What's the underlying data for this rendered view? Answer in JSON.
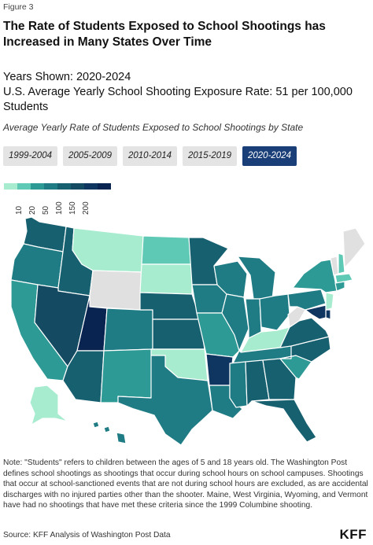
{
  "figure_label": "Figure 3",
  "title": "The Rate of Students Exposed to School Shootings has Increased in Many States Over Time",
  "years_shown": "Years Shown: 2020-2024",
  "us_average": "U.S. Average Yearly School Shooting Exposure Rate: 51 per 100,000 Students",
  "subtitle": "Average Yearly Rate of Students Exposed to School Shootings by State",
  "period_buttons": [
    {
      "label": "1999-2004",
      "active": false
    },
    {
      "label": "2005-2009",
      "active": false
    },
    {
      "label": "2010-2014",
      "active": false
    },
    {
      "label": "2015-2019",
      "active": false
    },
    {
      "label": "2020-2024",
      "active": true
    }
  ],
  "legend": {
    "ticks": [
      "10",
      "20",
      "50",
      "100",
      "150",
      "200"
    ],
    "colors": [
      "#a8ecd0",
      "#5ec9b4",
      "#2e9a96",
      "#1f7c84",
      "#17606f",
      "#144b63",
      "#0e3660",
      "#0a2452"
    ]
  },
  "map_colors": {
    "no_data": "#e0e0e0",
    "tier1": "#a8ecd0",
    "tier2": "#5ec9b4",
    "tier3": "#2e9a96",
    "tier4": "#1f7c84",
    "tier5": "#17606f",
    "tier6": "#144b63",
    "tier7": "#0e3660",
    "tier8": "#0a2452"
  },
  "states": [
    {
      "id": "WA",
      "tier": "tier5"
    },
    {
      "id": "OR",
      "tier": "tier4"
    },
    {
      "id": "CA",
      "tier": "tier3"
    },
    {
      "id": "ID",
      "tier": "tier5"
    },
    {
      "id": "NV",
      "tier": "tier6"
    },
    {
      "id": "MT",
      "tier": "tier1"
    },
    {
      "id": "WY",
      "tier": "no_data"
    },
    {
      "id": "UT",
      "tier": "tier8"
    },
    {
      "id": "AZ",
      "tier": "tier5"
    },
    {
      "id": "CO",
      "tier": "tier4"
    },
    {
      "id": "NM",
      "tier": "tier3"
    },
    {
      "id": "ND",
      "tier": "tier2"
    },
    {
      "id": "SD",
      "tier": "tier1"
    },
    {
      "id": "NE",
      "tier": "tier5"
    },
    {
      "id": "KS",
      "tier": "tier5"
    },
    {
      "id": "OK",
      "tier": "tier1"
    },
    {
      "id": "TX",
      "tier": "tier4"
    },
    {
      "id": "MN",
      "tier": "tier5"
    },
    {
      "id": "IA",
      "tier": "tier4"
    },
    {
      "id": "MO",
      "tier": "tier3"
    },
    {
      "id": "AR",
      "tier": "tier7"
    },
    {
      "id": "LA",
      "tier": "tier4"
    },
    {
      "id": "WI",
      "tier": "tier4"
    },
    {
      "id": "IL",
      "tier": "tier4"
    },
    {
      "id": "MI",
      "tier": "tier4"
    },
    {
      "id": "IN",
      "tier": "tier4"
    },
    {
      "id": "OH",
      "tier": "tier4"
    },
    {
      "id": "KY",
      "tier": "tier1"
    },
    {
      "id": "TN",
      "tier": "tier4"
    },
    {
      "id": "MS",
      "tier": "tier4"
    },
    {
      "id": "AL",
      "tier": "tier5"
    },
    {
      "id": "GA",
      "tier": "tier5"
    },
    {
      "id": "FL",
      "tier": "tier5"
    },
    {
      "id": "SC",
      "tier": "tier3"
    },
    {
      "id": "NC",
      "tier": "tier5"
    },
    {
      "id": "VA",
      "tier": "tier5"
    },
    {
      "id": "WV",
      "tier": "no_data"
    },
    {
      "id": "PA",
      "tier": "tier4"
    },
    {
      "id": "NY",
      "tier": "tier3"
    },
    {
      "id": "VT",
      "tier": "no_data"
    },
    {
      "id": "NH",
      "tier": "tier2"
    },
    {
      "id": "ME",
      "tier": "no_data"
    },
    {
      "id": "MA",
      "tier": "tier2"
    },
    {
      "id": "CT",
      "tier": "tier3"
    },
    {
      "id": "NJ",
      "tier": "tier1"
    },
    {
      "id": "DE",
      "tier": "tier7"
    },
    {
      "id": "MD",
      "tier": "tier7"
    },
    {
      "id": "AK",
      "tier": "tier1"
    },
    {
      "id": "HI",
      "tier": "tier4"
    }
  ],
  "note": "Note: \"Students\" refers to children between the ages of 5 and 18 years old. The Washington Post defines school shootings as shootings that occur during school hours on school campuses. Shootings that occur at school-sanctioned events that are not during school hours are excluded, as are accidental discharges with no injured parties other than the shooter. Maine, West Virginia, Wyoming, and Vermont have had no shootings that have met these criteria since the 1999 Columbine shooting.",
  "source": "Source: KFF Analysis of Washington Post Data",
  "brand": "KFF"
}
